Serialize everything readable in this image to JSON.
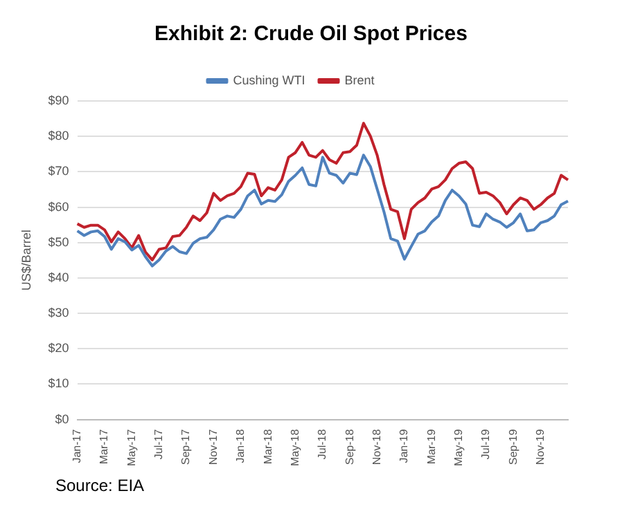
{
  "chart_data": {
    "type": "line",
    "title": "Exhibit 2: Crude Oil Spot Prices",
    "ylabel": "US$/Barrel",
    "annotations": [
      "Source: EIA"
    ],
    "categories": [
      "Jan-17",
      null,
      null,
      null,
      "Mar-17",
      null,
      null,
      null,
      "May-17",
      null,
      null,
      null,
      "Jul-17",
      null,
      null,
      null,
      "Sep-17",
      null,
      null,
      null,
      "Nov-17",
      null,
      null,
      null,
      "Jan-18",
      null,
      null,
      null,
      "Mar-18",
      null,
      null,
      null,
      "May-18",
      null,
      null,
      null,
      "Jul-18",
      null,
      null,
      null,
      "Sep-18",
      null,
      null,
      null,
      "Nov-18",
      null,
      null,
      null,
      "Jan-19",
      null,
      null,
      null,
      "Mar-19",
      null,
      null,
      null,
      "May-19",
      null,
      null,
      null,
      "Jul-19",
      null,
      null,
      null,
      "Sep-19",
      null,
      null,
      null,
      "Nov-19",
      null,
      null,
      null,
      null
    ],
    "series": [
      {
        "name": "Cushing WTI",
        "color": "#4f81bd",
        "values": [
          53.3,
          52.0,
          53.0,
          53.3,
          51.7,
          48.1,
          51.1,
          50.2,
          47.9,
          49.2,
          46.0,
          43.4,
          45.1,
          47.6,
          48.9,
          47.4,
          46.9,
          49.8,
          51.1,
          51.5,
          53.6,
          56.6,
          57.5,
          57.1,
          59.4,
          63.2,
          64.8,
          60.9,
          61.9,
          61.6,
          63.5,
          67.3,
          69.0,
          71.1,
          66.4,
          66.0,
          74.1,
          69.6,
          69.0,
          66.8,
          69.6,
          69.2,
          74.7,
          71.5,
          65.1,
          58.7,
          51.1,
          50.4,
          45.3,
          48.9,
          52.4,
          53.3,
          55.8,
          57.5,
          61.9,
          64.8,
          63.2,
          60.9,
          54.9,
          54.5,
          58.1,
          56.6,
          55.8,
          54.3,
          55.6,
          58.1,
          53.3,
          53.6,
          55.6,
          56.2,
          57.5,
          60.7,
          61.7
        ]
      },
      {
        "name": "Brent",
        "color": "#c0212b",
        "values": [
          55.3,
          54.3,
          54.9,
          54.9,
          53.6,
          50.2,
          53.0,
          51.1,
          48.5,
          52.0,
          47.3,
          45.1,
          48.1,
          48.5,
          51.7,
          52.0,
          54.3,
          57.5,
          56.2,
          58.4,
          63.9,
          61.9,
          63.2,
          63.9,
          65.8,
          69.6,
          69.3,
          63.2,
          65.5,
          64.8,
          67.7,
          74.1,
          75.4,
          78.3,
          74.7,
          74.1,
          76.0,
          73.4,
          72.4,
          75.4,
          75.7,
          77.5,
          83.7,
          80.1,
          74.7,
          66.4,
          59.4,
          58.7,
          51.1,
          59.4,
          61.3,
          62.6,
          65.1,
          65.8,
          67.7,
          70.9,
          72.4,
          72.8,
          70.9,
          63.9,
          64.2,
          63.2,
          61.3,
          58.1,
          60.7,
          62.6,
          61.9,
          59.4,
          60.7,
          62.6,
          63.9,
          69.0,
          67.7
        ]
      }
    ],
    "ylim": [
      0,
      90
    ],
    "yticks": [
      {
        "value": 0,
        "label": "$0"
      },
      {
        "value": 10,
        "label": "$10"
      },
      {
        "value": 20,
        "label": "$20"
      },
      {
        "value": 30,
        "label": "$30"
      },
      {
        "value": 40,
        "label": "$40"
      },
      {
        "value": 50,
        "label": "$50"
      },
      {
        "value": 60,
        "label": "$60"
      },
      {
        "value": 70,
        "label": "$70"
      },
      {
        "value": 80,
        "label": "$80"
      },
      {
        "value": 90,
        "label": "$90"
      }
    ],
    "grid": "y",
    "legend": "top",
    "marker": "none",
    "line_style": "solid"
  }
}
